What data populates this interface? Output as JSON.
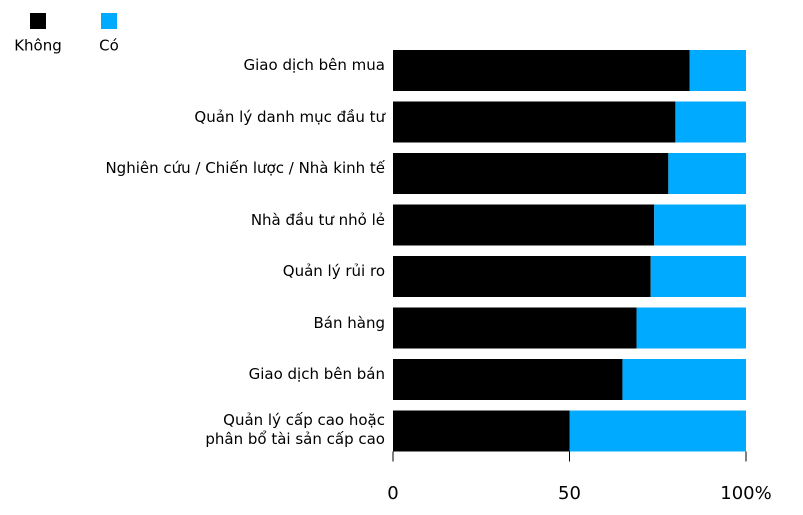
{
  "chart_data": {
    "type": "stacked-bar-horizontal",
    "categories": [
      "Giao dịch bên mua",
      "Quản lý danh mục đầu tư",
      "Nghiên cứu / Chiến lược / Nhà kinh tế",
      "Nhà đầu tư nhỏ lẻ",
      "Quản lý rủi ro",
      "Bán hàng",
      "Giao dịch bên bán",
      "Quản lý cấp cao hoặc\nphân bổ tài sản cấp cao"
    ],
    "series": [
      {
        "name": "Không",
        "color": "#000000",
        "values": [
          84,
          80,
          78,
          74,
          73,
          69,
          65,
          50
        ]
      },
      {
        "name": "Có",
        "color": "#00aaff",
        "values": [
          16,
          20,
          22,
          26,
          27,
          31,
          35,
          50
        ]
      }
    ],
    "xlim": [
      0,
      100
    ],
    "xticks": [
      0,
      50,
      {
        "value": 100,
        "label": "100%"
      }
    ],
    "legend": "top-left"
  }
}
